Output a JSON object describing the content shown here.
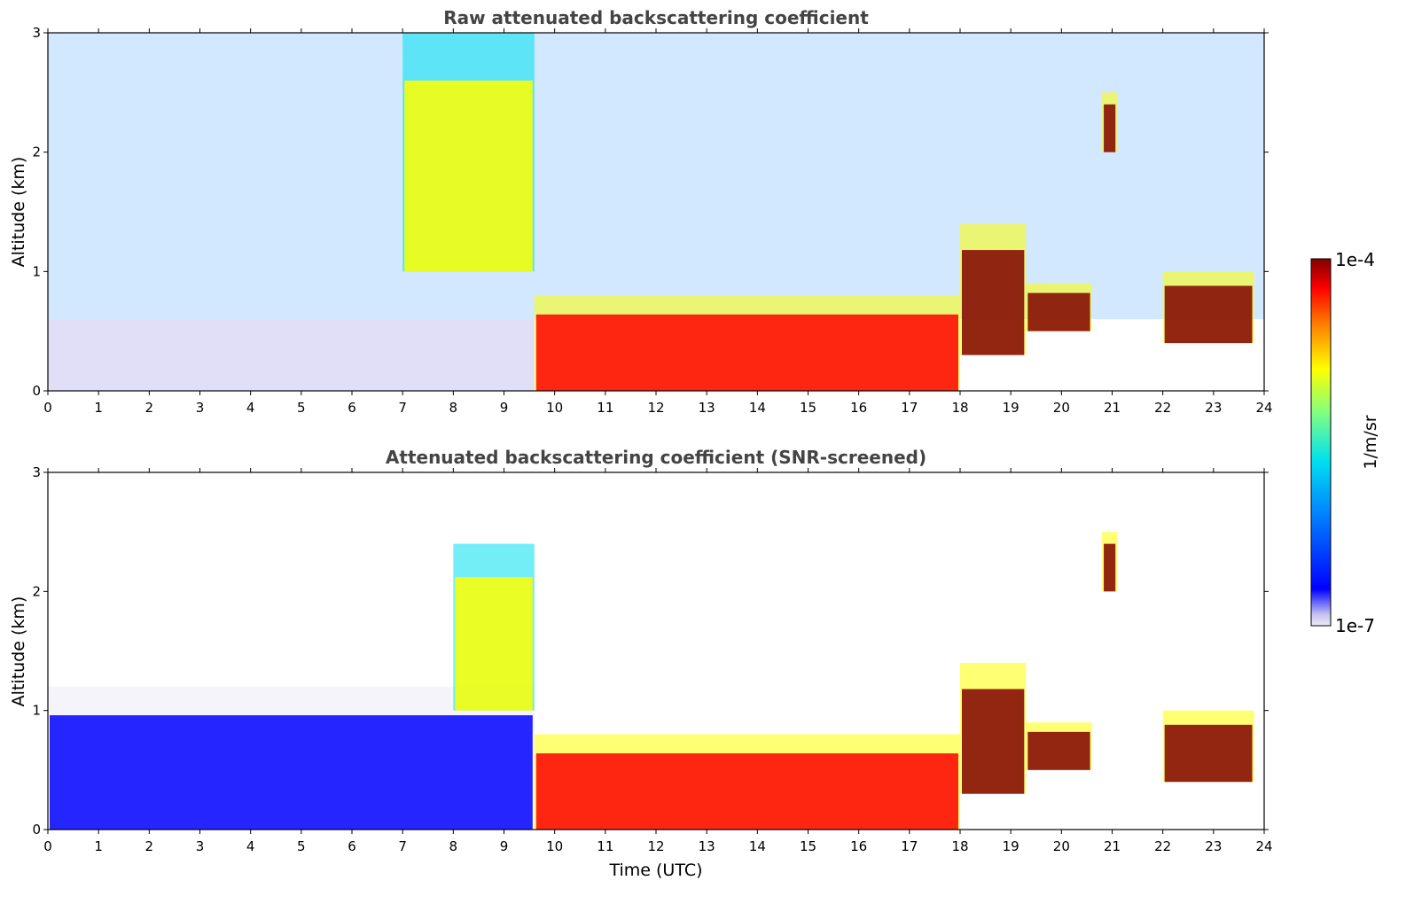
{
  "chart_data": [
    {
      "type": "heatmap",
      "title": "Raw attenuated backscattering coefficient",
      "xlabel": "",
      "ylabel": "Altitude (km)",
      "xlim": [
        0,
        24
      ],
      "ylim": [
        0,
        3
      ],
      "x_ticks": [
        "0",
        "1",
        "2",
        "3",
        "4",
        "5",
        "6",
        "7",
        "8",
        "9",
        "10",
        "11",
        "12",
        "13",
        "14",
        "15",
        "16",
        "17",
        "18",
        "19",
        "20",
        "21",
        "22",
        "23",
        "24"
      ],
      "y_ticks": [
        "0",
        "1",
        "2",
        "3"
      ],
      "screened": false,
      "features": [
        {
          "x": [
            9.6,
            18.0
          ],
          "y": [
            0,
            0.8
          ],
          "level": 0.9
        },
        {
          "x": [
            18.0,
            19.3
          ],
          "y": [
            0.3,
            1.4
          ],
          "level": 0.95
        },
        {
          "x": [
            19.3,
            20.6
          ],
          "y": [
            0.5,
            0.9
          ],
          "level": 0.95
        },
        {
          "x": [
            22.0,
            23.8
          ],
          "y": [
            0.4,
            1.0
          ],
          "level": 0.95
        },
        {
          "x": [
            20.8,
            21.1
          ],
          "y": [
            2.0,
            2.5
          ],
          "level": 0.95
        },
        {
          "x": [
            7.0,
            9.6
          ],
          "y": [
            1.0,
            3.0
          ],
          "level": 0.7
        }
      ]
    },
    {
      "type": "heatmap",
      "title": "Attenuated backscattering coefficient (SNR-screened)",
      "xlabel": "Time (UTC)",
      "ylabel": "Altitude (km)",
      "xlim": [
        0,
        24
      ],
      "ylim": [
        0,
        3
      ],
      "x_ticks": [
        "0",
        "1",
        "2",
        "3",
        "4",
        "5",
        "6",
        "7",
        "8",
        "9",
        "10",
        "11",
        "12",
        "13",
        "14",
        "15",
        "16",
        "17",
        "18",
        "19",
        "20",
        "21",
        "22",
        "23",
        "24"
      ],
      "y_ticks": [
        "0",
        "1",
        "2",
        "3"
      ],
      "screened": true,
      "features": [
        {
          "x": [
            0,
            9.6
          ],
          "y": [
            0,
            1.2
          ],
          "level": 0.2
        },
        {
          "x": [
            9.6,
            18.0
          ],
          "y": [
            0,
            0.8
          ],
          "level": 0.9
        },
        {
          "x": [
            18.0,
            19.3
          ],
          "y": [
            0.3,
            1.4
          ],
          "level": 0.95
        },
        {
          "x": [
            19.3,
            20.6
          ],
          "y": [
            0.5,
            0.9
          ],
          "level": 0.95
        },
        {
          "x": [
            22.0,
            23.8
          ],
          "y": [
            0.4,
            1.0
          ],
          "level": 0.95
        },
        {
          "x": [
            20.8,
            21.1
          ],
          "y": [
            2.0,
            2.5
          ],
          "level": 0.95
        },
        {
          "x": [
            8.0,
            9.6
          ],
          "y": [
            1.0,
            2.4
          ],
          "level": 0.7
        }
      ]
    }
  ],
  "colorbar": {
    "label": "1/m/sr",
    "max_label": "1e-4",
    "min_label": "1e-7",
    "colormap": "jet",
    "colors": [
      "#ecebf7",
      "#c6c4f0",
      "#0000ff",
      "#0080ff",
      "#00e0f0",
      "#80ff80",
      "#ffff00",
      "#ff8000",
      "#ff0000",
      "#800000"
    ]
  }
}
